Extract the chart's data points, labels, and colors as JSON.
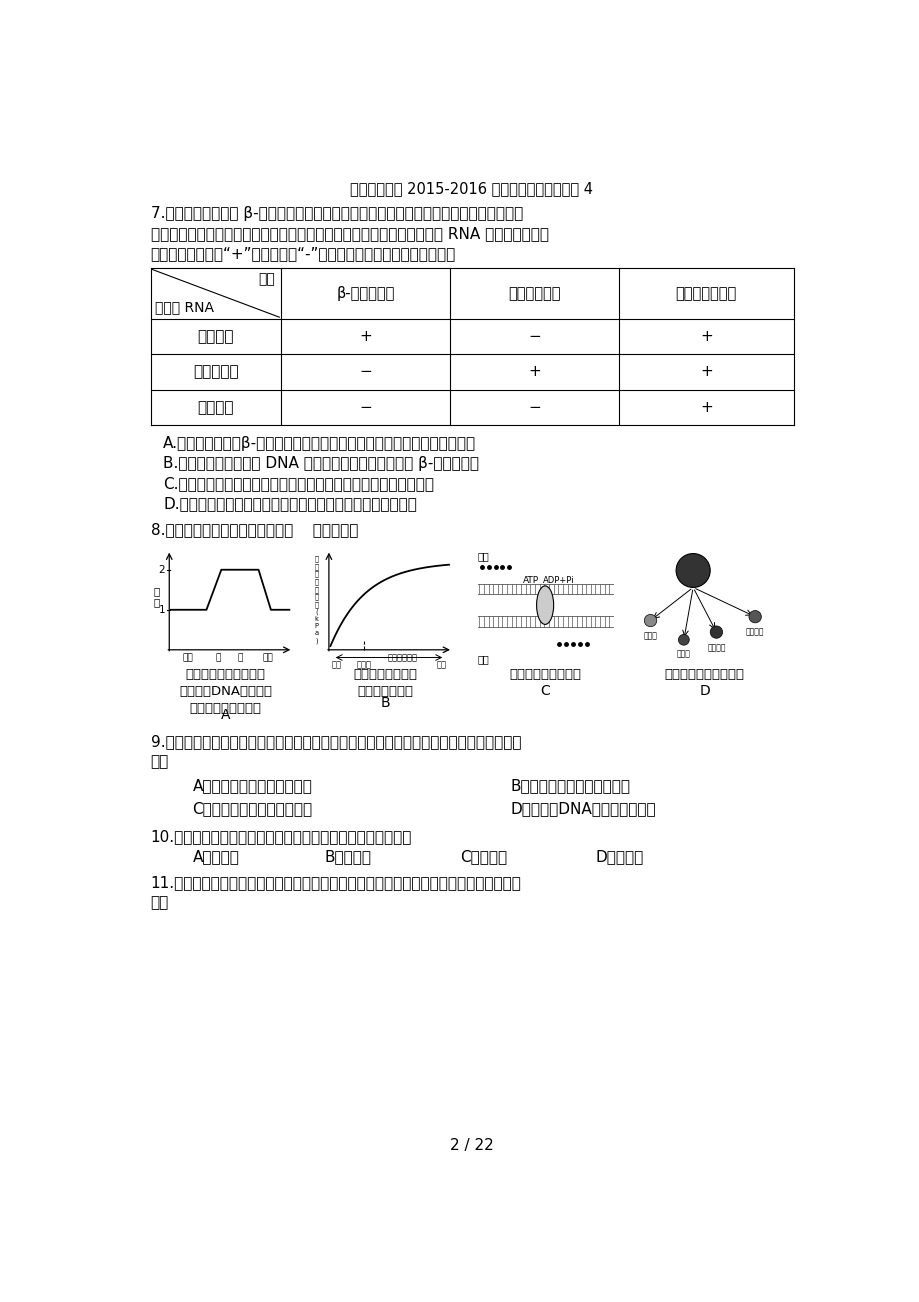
{
  "title": "福建省永春县 2015-2016 学年高二生物暑假作业 4",
  "background_color": "#ffffff",
  "text_color": "#000000",
  "page_number": "2 / 22",
  "q7_text_lines": [
    "7.（安徽卷）分别用 β-珠蛋白基因、卵清蛋白基因和丙酮酸激酶（与细胞呼吸相关的酶）",
    "基因的片段为探针，与鸡的成红细胞、输卵管细胞和胰岛细胞中提取的总 RNA 进行分子杂交，",
    "结果见下表（注：“+”表示阳性，“-”表示阴性）。下列叙述不正确的是"
  ],
  "table_header_col1_top": "探针",
  "table_header_col1_bot": "细胞总 RNA",
  "table_col_headers": [
    "β-珠蛋白基因",
    "卵清蛋白基因",
    "丙酮酸激酶基因"
  ],
  "table_rows": [
    [
      "成红细胞",
      "+",
      "−",
      "+"
    ],
    [
      "输卵管细胞",
      "−",
      "+",
      "+"
    ],
    [
      "胰岛细胞",
      "−",
      "−",
      "+"
    ]
  ],
  "q7_options": [
    "A.在成红细胞中，β-珠蛋白基因处于活动状态，卵清蛋白基因处于关闭状态",
    "B.输卵管细胞的基因组 DNA 中存在卵清蛋白基因，缺少 β-珠蛋白基因",
    "C.丙酮酸激酶基因的表达产物对维持鸡细胞的基本生命活动很重要",
    "D.上述不同类型细胞的生理功能差异与基因的选择性表达有关"
  ],
  "q8_text": "8.（广东卷）以下选项正确的是（    ）（多选）",
  "q9_text_lines": [
    "9.（新课标）同一动物个体的神经细胞与肌细胞在功能上是不同的，造成这种差异的主要原",
    "因是"
  ],
  "q9_options_col1": [
    "A．二者所处的细胞周期不同",
    "C．二者所含有的基因组不同"
  ],
  "q9_options_col2": [
    "B．二者合成的特定蛋白不同",
    "D．二者核DNA的复制方式不同"
  ],
  "q10_text": "10.（上海卷）植物细胞具有发育为完整植株潜能的决定因素是",
  "q10_options": [
    "A．细胞膜",
    "B．细胞核",
    "C．线粒体",
    "D．叶绿体"
  ],
  "q11_text_lines": [
    "11.（山东卷）神经系统正常发育过程中神经细胞数量的调节机制如图所示。下列说法正确",
    "的是"
  ],
  "figA_caption": "洋葱根尖细胞有丝分裂\n过程中核DNA分子数与\n染色体数的比值变化",
  "figA_label": "A",
  "figB_caption": "植物细胞体积与胞\n内渗透压的关系",
  "figB_label": "B",
  "figC_caption": "膜蛋白酶的运输模式",
  "figC_label": "C",
  "figD_caption": "胚胎干细胞的分化潜能",
  "figD_label": "D"
}
